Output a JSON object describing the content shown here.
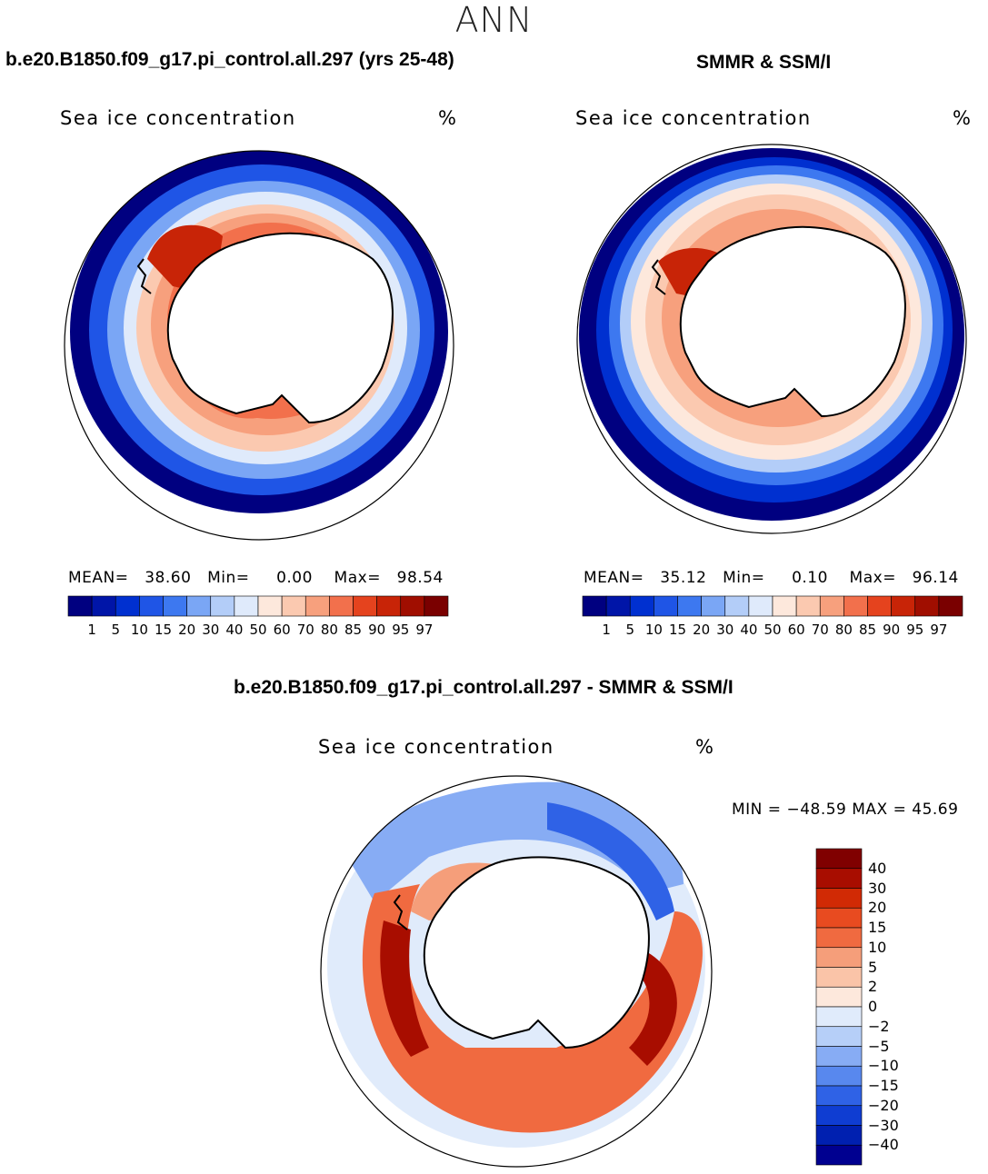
{
  "season": "ANN",
  "panels": {
    "model": {
      "title": "b.e20.B1850.f09_g17.pi_control.all.297 (yrs 25-48)",
      "variable": "Sea ice concentration",
      "units": "%",
      "stats": {
        "mean_label": "MEAN=",
        "mean": "38.60",
        "min_label": "Min=",
        "min": "0.00",
        "max_label": "Max=",
        "max": "98.54"
      }
    },
    "obs": {
      "title": "SMMR & SSM/I",
      "variable": "Sea ice concentration",
      "units": "%",
      "stats": {
        "mean_label": "MEAN=",
        "mean": "35.12",
        "min_label": "Min=",
        "min": "0.10",
        "max_label": "Max=",
        "max": "96.14"
      }
    },
    "diff": {
      "title": "b.e20.B1850.f09_g17.pi_control.all.297 - SMMR & SSM/I",
      "variable": "Sea ice concentration",
      "units": "%",
      "minmax": "MIN = −48.59 MAX =  45.69"
    }
  },
  "colorbars": {
    "concentration": {
      "labels": [
        "1",
        "5",
        "10",
        "15",
        "20",
        "30",
        "40",
        "50",
        "60",
        "70",
        "80",
        "85",
        "90",
        "95",
        "97"
      ],
      "colors": [
        "#000080",
        "#0015a8",
        "#0030d0",
        "#1f55e6",
        "#3d78f0",
        "#7aa6f5",
        "#b3cdf8",
        "#dfeafb",
        "#fde8dc",
        "#fbc9b0",
        "#f7a07d",
        "#f2704c",
        "#e5431e",
        "#c82407",
        "#a00e00",
        "#7a0000"
      ]
    },
    "difference": {
      "labels": [
        "40",
        "30",
        "20",
        "15",
        "10",
        "5",
        "2",
        "0",
        "−2",
        "−5",
        "−10",
        "−15",
        "−20",
        "−30",
        "−40"
      ],
      "colors": [
        "#800000",
        "#a80d00",
        "#d12a05",
        "#e84b20",
        "#f06a40",
        "#f59e7a",
        "#fac4a8",
        "#fde8dc",
        "#e0ebfb",
        "#b6cff8",
        "#87acf4",
        "#5888ee",
        "#2f62e6",
        "#0f3dd2",
        "#0020b0",
        "#000090"
      ]
    }
  }
}
